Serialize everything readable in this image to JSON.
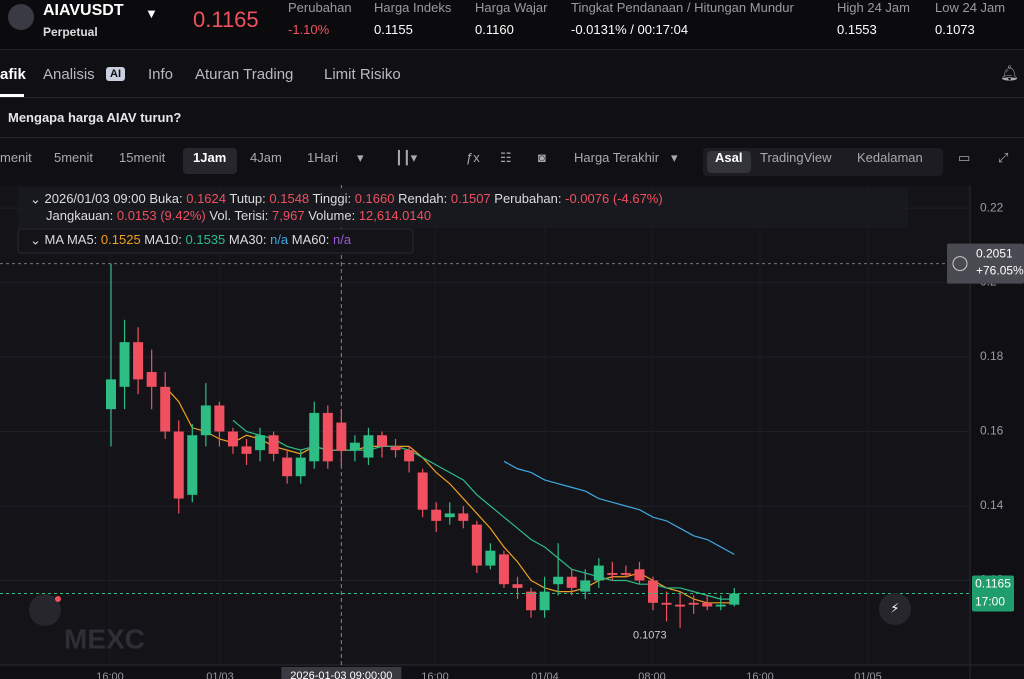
{
  "header": {
    "symbol": "AIAVUSDT",
    "contract": "Perpetual",
    "price": "0.1165",
    "stats": [
      {
        "label": "Perubahan",
        "value": "-1.10%"
      },
      {
        "label": "Harga Indeks",
        "value": "0.1155"
      },
      {
        "label": "Harga Wajar",
        "value": "0.1160"
      },
      {
        "label": "Tingkat Pendanaan / Hitungan Mundur",
        "value": "-0.0131% / 00:17:04"
      },
      {
        "label": "High 24 Jam",
        "value": "0.1553"
      },
      {
        "label": "Low 24 Jam",
        "value": "0.1073"
      }
    ]
  },
  "tabs": [
    "afik",
    "Analisis",
    "Info",
    "Aturan Trading",
    "Limit Risiko"
  ],
  "ai_badge": "AI",
  "banner": "Mengapa harga AIAV turun?",
  "toolbar": {
    "intervals": [
      "menit",
      "5menit",
      "15menit",
      "1Jam",
      "4Jam",
      "1Hari"
    ],
    "price_source": "Harga Terakhir",
    "views": [
      "Asal",
      "TradingView",
      "Kedalaman"
    ]
  },
  "chart_data": {
    "type": "candlestick",
    "info": {
      "time": "2026/01/03 09:00",
      "fields": [
        {
          "label": "Buka:",
          "value": "0.1624"
        },
        {
          "label": "Tutup:",
          "value": "0.1548"
        },
        {
          "label": "Tinggi:",
          "value": "0.1660"
        },
        {
          "label": "Rendah:",
          "value": "0.1507"
        },
        {
          "label": "Perubahan:",
          "value": "-0.0076 (-4.67%)"
        }
      ],
      "fields2": [
        {
          "label": "Jangkauan:",
          "value": "0.0153 (9.42%)"
        },
        {
          "label": "Vol. Terisi:",
          "value": "7,967"
        },
        {
          "label": "Volume:",
          "value": "12,614.0140"
        }
      ]
    },
    "ma_legend": {
      "title": "MA",
      "items": [
        {
          "label": "MA5:",
          "value": "0.1525",
          "color": "#f0a020"
        },
        {
          "label": "MA10:",
          "value": "0.1535",
          "color": "#2ebd85"
        },
        {
          "label": "MA30:",
          "value": "n/a",
          "color": "#3fa9e0"
        },
        {
          "label": "MA60:",
          "value": "n/a",
          "color": "#9b59d9"
        }
      ]
    },
    "open": [
      0.166,
      0.172,
      0.184,
      0.176,
      0.172,
      0.16,
      0.143,
      0.159,
      0.167,
      0.16,
      0.156,
      0.155,
      0.159,
      0.153,
      0.148,
      0.152,
      0.165,
      0.1624,
      0.155,
      0.153,
      0.159,
      0.156,
      0.155,
      0.149,
      0.139,
      0.137,
      0.138,
      0.135,
      0.124,
      0.127,
      0.119,
      0.117,
      0.112,
      0.119,
      0.121,
      0.117,
      0.12,
      0.122,
      0.122,
      0.123,
      0.12,
      0.114,
      0.1135,
      0.114,
      0.114,
      0.113,
      0.1135
    ],
    "close": [
      0.174,
      0.184,
      0.174,
      0.172,
      0.16,
      0.142,
      0.159,
      0.167,
      0.16,
      0.156,
      0.154,
      0.159,
      0.154,
      0.148,
      0.153,
      0.165,
      0.152,
      0.1548,
      0.157,
      0.159,
      0.156,
      0.155,
      0.152,
      0.139,
      0.136,
      0.138,
      0.136,
      0.124,
      0.128,
      0.119,
      0.118,
      0.112,
      0.117,
      0.121,
      0.118,
      0.12,
      0.124,
      0.1215,
      0.1215,
      0.12,
      0.114,
      0.1135,
      0.113,
      0.1135,
      0.113,
      0.1135,
      0.1165
    ],
    "high": [
      0.2051,
      0.19,
      0.188,
      0.182,
      0.176,
      0.163,
      0.162,
      0.173,
      0.168,
      0.161,
      0.158,
      0.161,
      0.16,
      0.155,
      0.155,
      0.168,
      0.167,
      0.166,
      0.159,
      0.161,
      0.16,
      0.158,
      0.156,
      0.15,
      0.141,
      0.141,
      0.14,
      0.136,
      0.13,
      0.128,
      0.121,
      0.118,
      0.121,
      0.13,
      0.123,
      0.123,
      0.126,
      0.125,
      0.124,
      0.125,
      0.121,
      0.117,
      0.117,
      0.116,
      0.116,
      0.116,
      0.118
    ],
    "low": [
      0.156,
      0.166,
      0.17,
      0.166,
      0.158,
      0.138,
      0.141,
      0.156,
      0.156,
      0.154,
      0.151,
      0.152,
      0.152,
      0.146,
      0.146,
      0.15,
      0.15,
      0.1507,
      0.152,
      0.151,
      0.153,
      0.153,
      0.149,
      0.137,
      0.133,
      0.135,
      0.134,
      0.122,
      0.123,
      0.118,
      0.115,
      0.11,
      0.11,
      0.116,
      0.116,
      0.115,
      0.118,
      0.12,
      0.121,
      0.119,
      0.112,
      0.109,
      0.1073,
      0.111,
      0.112,
      0.112,
      0.113
    ],
    "series": [
      {
        "name": "MA5",
        "color": "#f0a020",
        "values": [
          null,
          null,
          null,
          null,
          0.172,
          0.168,
          0.161,
          0.16,
          0.158,
          0.157,
          0.159,
          0.158,
          0.156,
          0.155,
          0.154,
          0.156,
          0.155,
          0.155,
          0.155,
          0.156,
          0.156,
          0.156,
          0.156,
          0.153,
          0.149,
          0.146,
          0.142,
          0.138,
          0.134,
          0.129,
          0.125,
          0.12,
          0.118,
          0.117,
          0.117,
          0.118,
          0.12,
          0.121,
          0.121,
          0.122,
          0.12,
          0.118,
          0.117,
          0.115,
          0.114,
          0.114,
          0.114
        ]
      },
      {
        "name": "MA10",
        "color": "#2ebd85",
        "values": [
          null,
          null,
          null,
          null,
          null,
          null,
          null,
          null,
          null,
          0.163,
          0.16,
          0.159,
          0.158,
          0.156,
          0.155,
          0.156,
          0.155,
          0.155,
          0.155,
          0.155,
          0.156,
          0.156,
          0.155,
          0.153,
          0.151,
          0.149,
          0.147,
          0.143,
          0.14,
          0.137,
          0.134,
          0.131,
          0.129,
          0.126,
          0.123,
          0.122,
          0.121,
          0.12,
          0.12,
          0.119,
          0.119,
          0.118,
          0.118,
          0.117,
          0.116,
          0.115,
          0.115
        ]
      },
      {
        "name": "MA30",
        "color": "#3fa9e0",
        "values": [
          null,
          null,
          null,
          null,
          null,
          null,
          null,
          null,
          null,
          null,
          null,
          null,
          null,
          null,
          null,
          null,
          null,
          null,
          null,
          null,
          null,
          null,
          null,
          null,
          null,
          null,
          null,
          null,
          null,
          0.152,
          0.15,
          0.149,
          0.147,
          0.146,
          0.145,
          0.144,
          0.142,
          0.141,
          0.14,
          0.139,
          0.137,
          0.136,
          0.134,
          0.132,
          0.131,
          0.129,
          0.127
        ]
      }
    ],
    "ylim": [
      0.0973,
      0.2262
    ],
    "yticks": [
      0.22,
      0.2,
      0.18,
      0.16,
      0.14,
      0.12
    ],
    "xlabels": [
      "16:00",
      "01/03",
      "16:00",
      "01/04",
      "08:00",
      "16:00",
      "01/05"
    ],
    "crosshair_label": "2026-01-03 09:00:00",
    "crosshair_index": 17,
    "max_badge": {
      "price": "0.2051",
      "change": "+76.05%"
    },
    "last_badge": {
      "price": "0.1165",
      "time": "17:00"
    },
    "low_label": "0.1073",
    "watermark": "MEXC",
    "up_color": "#2ebd85",
    "down_color": "#f0505f"
  }
}
